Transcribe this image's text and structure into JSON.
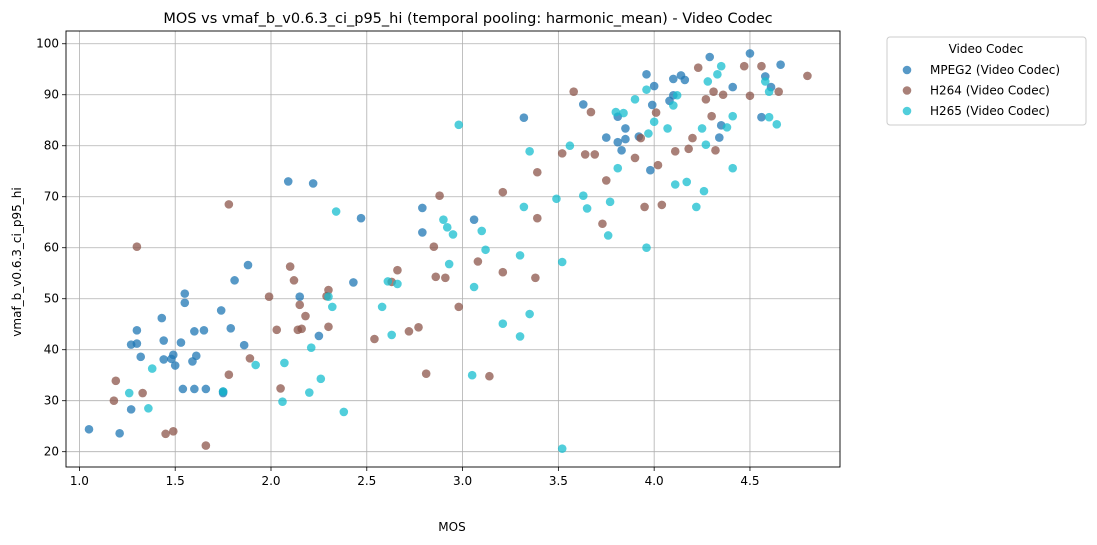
{
  "chart_data": {
    "type": "scatter",
    "title": "MOS vs vmaf_b_v0.6.3_ci_p95_hi (temporal pooling: harmonic_mean) - Video Codec",
    "xlabel": "MOS",
    "ylabel": "vmaf_b_v0.6.3_ci_p95_hi",
    "xlim": [
      0.93,
      4.97
    ],
    "ylim": [
      17,
      102.5
    ],
    "xticks": [
      "1.0",
      "1.5",
      "2.0",
      "2.5",
      "3.0",
      "3.5",
      "4.0",
      "4.5"
    ],
    "yticks": [
      "20",
      "30",
      "40",
      "50",
      "60",
      "70",
      "80",
      "90",
      "100"
    ],
    "grid": true,
    "legend": {
      "title": "Video Codec",
      "placement": "outside-top-right"
    },
    "series": [
      {
        "name": "MPEG2 (Video Codec)",
        "color": "#1f77b4",
        "points": [
          [
            1.05,
            24.4
          ],
          [
            1.21,
            23.6
          ],
          [
            1.27,
            28.3
          ],
          [
            1.27,
            41.0
          ],
          [
            1.3,
            41.2
          ],
          [
            1.3,
            43.8
          ],
          [
            1.32,
            38.6
          ],
          [
            1.43,
            46.2
          ],
          [
            1.44,
            38.1
          ],
          [
            1.44,
            41.8
          ],
          [
            1.48,
            38.2
          ],
          [
            1.49,
            39.0
          ],
          [
            1.5,
            36.9
          ],
          [
            1.53,
            41.4
          ],
          [
            1.54,
            32.3
          ],
          [
            1.55,
            49.2
          ],
          [
            1.55,
            51.0
          ],
          [
            1.59,
            37.7
          ],
          [
            1.6,
            43.6
          ],
          [
            1.6,
            32.3
          ],
          [
            1.61,
            38.8
          ],
          [
            1.65,
            43.8
          ],
          [
            1.66,
            32.3
          ],
          [
            1.74,
            47.7
          ],
          [
            1.75,
            31.5
          ],
          [
            1.75,
            31.8
          ],
          [
            1.79,
            44.2
          ],
          [
            1.81,
            53.6
          ],
          [
            1.86,
            40.9
          ],
          [
            1.88,
            56.6
          ],
          [
            2.09,
            73.0
          ],
          [
            2.15,
            50.4
          ],
          [
            2.22,
            72.6
          ],
          [
            2.25,
            42.7
          ],
          [
            2.43,
            53.2
          ],
          [
            2.47,
            65.8
          ],
          [
            2.79,
            67.8
          ],
          [
            2.79,
            63.0
          ],
          [
            3.06,
            65.5
          ],
          [
            3.32,
            85.5
          ],
          [
            3.63,
            88.1
          ],
          [
            3.75,
            81.6
          ],
          [
            3.81,
            80.7
          ],
          [
            3.81,
            85.7
          ],
          [
            3.83,
            79.1
          ],
          [
            3.85,
            83.4
          ],
          [
            3.85,
            81.3
          ],
          [
            3.92,
            81.8
          ],
          [
            3.96,
            94.0
          ],
          [
            3.98,
            75.2
          ],
          [
            3.99,
            88.0
          ],
          [
            4.0,
            91.7
          ],
          [
            4.08,
            88.8
          ],
          [
            4.1,
            93.1
          ],
          [
            4.1,
            89.9
          ],
          [
            4.14,
            93.8
          ],
          [
            4.16,
            92.9
          ],
          [
            4.29,
            97.4
          ],
          [
            4.34,
            81.6
          ],
          [
            4.35,
            84.0
          ],
          [
            4.41,
            91.5
          ],
          [
            4.5,
            98.1
          ],
          [
            4.56,
            85.6
          ],
          [
            4.58,
            93.6
          ],
          [
            4.61,
            91.5
          ],
          [
            4.66,
            95.9
          ]
        ]
      },
      {
        "name": "H264 (Video Codec)",
        "color": "#8c564b",
        "points": [
          [
            1.18,
            30.0
          ],
          [
            1.19,
            33.9
          ],
          [
            1.3,
            60.2
          ],
          [
            1.33,
            31.5
          ],
          [
            1.45,
            23.5
          ],
          [
            1.49,
            24.0
          ],
          [
            1.66,
            21.2
          ],
          [
            1.78,
            35.1
          ],
          [
            1.78,
            68.5
          ],
          [
            1.89,
            38.3
          ],
          [
            1.99,
            50.4
          ],
          [
            2.03,
            43.9
          ],
          [
            2.05,
            32.4
          ],
          [
            2.1,
            56.3
          ],
          [
            2.12,
            53.6
          ],
          [
            2.14,
            43.9
          ],
          [
            2.15,
            48.8
          ],
          [
            2.16,
            44.1
          ],
          [
            2.18,
            46.6
          ],
          [
            2.29,
            50.5
          ],
          [
            2.3,
            51.7
          ],
          [
            2.3,
            44.5
          ],
          [
            2.54,
            42.1
          ],
          [
            2.63,
            53.3
          ],
          [
            2.66,
            55.6
          ],
          [
            2.72,
            43.6
          ],
          [
            2.77,
            44.4
          ],
          [
            2.81,
            35.3
          ],
          [
            2.85,
            60.2
          ],
          [
            2.86,
            54.3
          ],
          [
            2.88,
            70.2
          ],
          [
            2.91,
            54.1
          ],
          [
            2.98,
            48.4
          ],
          [
            3.08,
            57.3
          ],
          [
            3.14,
            34.8
          ],
          [
            3.21,
            70.9
          ],
          [
            3.21,
            55.2
          ],
          [
            3.38,
            54.1
          ],
          [
            3.39,
            65.8
          ],
          [
            3.39,
            74.8
          ],
          [
            3.52,
            78.5
          ],
          [
            3.58,
            90.6
          ],
          [
            3.64,
            78.3
          ],
          [
            3.67,
            86.6
          ],
          [
            3.69,
            78.3
          ],
          [
            3.73,
            64.7
          ],
          [
            3.75,
            73.2
          ],
          [
            3.9,
            77.6
          ],
          [
            3.93,
            81.5
          ],
          [
            3.95,
            68.0
          ],
          [
            4.01,
            86.5
          ],
          [
            4.02,
            76.2
          ],
          [
            4.04,
            68.4
          ],
          [
            4.11,
            78.9
          ],
          [
            4.18,
            79.4
          ],
          [
            4.2,
            81.5
          ],
          [
            4.23,
            95.3
          ],
          [
            4.27,
            89.1
          ],
          [
            4.3,
            85.8
          ],
          [
            4.31,
            90.6
          ],
          [
            4.32,
            79.1
          ],
          [
            4.36,
            90.0
          ],
          [
            4.47,
            95.6
          ],
          [
            4.5,
            89.8
          ],
          [
            4.56,
            95.6
          ],
          [
            4.65,
            90.6
          ],
          [
            4.8,
            93.7
          ]
        ]
      },
      {
        "name": "H265 (Video Codec)",
        "color": "#17becf",
        "points": [
          [
            1.26,
            31.5
          ],
          [
            1.36,
            28.5
          ],
          [
            1.38,
            36.3
          ],
          [
            1.75,
            31.8
          ],
          [
            1.92,
            37.0
          ],
          [
            2.06,
            29.8
          ],
          [
            2.07,
            37.4
          ],
          [
            2.2,
            31.6
          ],
          [
            2.21,
            40.4
          ],
          [
            2.26,
            34.3
          ],
          [
            2.3,
            50.4
          ],
          [
            2.32,
            48.4
          ],
          [
            2.34,
            67.1
          ],
          [
            2.38,
            27.8
          ],
          [
            2.58,
            48.4
          ],
          [
            2.61,
            53.4
          ],
          [
            2.63,
            42.9
          ],
          [
            2.66,
            52.9
          ],
          [
            2.9,
            65.5
          ],
          [
            2.92,
            64.0
          ],
          [
            2.93,
            56.8
          ],
          [
            2.95,
            62.6
          ],
          [
            2.98,
            84.1
          ],
          [
            3.05,
            35.0
          ],
          [
            3.06,
            52.3
          ],
          [
            3.1,
            63.3
          ],
          [
            3.12,
            59.6
          ],
          [
            3.21,
            45.1
          ],
          [
            3.3,
            42.6
          ],
          [
            3.3,
            58.5
          ],
          [
            3.32,
            68.0
          ],
          [
            3.35,
            47.0
          ],
          [
            3.35,
            78.9
          ],
          [
            3.49,
            69.6
          ],
          [
            3.52,
            57.2
          ],
          [
            3.52,
            20.6
          ],
          [
            3.56,
            80.0
          ],
          [
            3.63,
            70.2
          ],
          [
            3.65,
            67.7
          ],
          [
            3.76,
            62.4
          ],
          [
            3.77,
            69.0
          ],
          [
            3.8,
            86.6
          ],
          [
            3.81,
            75.6
          ],
          [
            3.84,
            86.4
          ],
          [
            3.9,
            89.1
          ],
          [
            3.96,
            60.0
          ],
          [
            3.96,
            91.0
          ],
          [
            3.97,
            82.4
          ],
          [
            4.0,
            84.7
          ],
          [
            4.07,
            83.4
          ],
          [
            4.1,
            87.9
          ],
          [
            4.11,
            72.4
          ],
          [
            4.12,
            89.9
          ],
          [
            4.17,
            72.9
          ],
          [
            4.22,
            68.0
          ],
          [
            4.25,
            83.4
          ],
          [
            4.26,
            71.1
          ],
          [
            4.28,
            92.6
          ],
          [
            4.27,
            80.2
          ],
          [
            4.33,
            94.0
          ],
          [
            4.35,
            95.6
          ],
          [
            4.38,
            83.6
          ],
          [
            4.41,
            85.8
          ],
          [
            4.41,
            75.6
          ],
          [
            4.58,
            92.6
          ],
          [
            4.6,
            85.6
          ],
          [
            4.6,
            90.6
          ],
          [
            4.64,
            84.2
          ]
        ]
      }
    ]
  }
}
